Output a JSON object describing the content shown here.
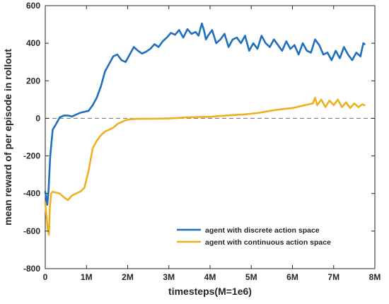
{
  "chart_data": {
    "type": "line",
    "title": "",
    "xlabel": "timesteps(M=1e6)",
    "ylabel": "mean reward of per episode in rollout",
    "xlim": [
      0,
      8
    ],
    "ylim": [
      -800,
      600
    ],
    "xticks": [
      0,
      1,
      2,
      3,
      4,
      5,
      6,
      7,
      8
    ],
    "xtick_labels": [
      "0",
      "1M",
      "2M",
      "3M",
      "4M",
      "5M",
      "6M",
      "7M",
      "8M"
    ],
    "yticks": [
      -800,
      -600,
      -400,
      -200,
      0,
      200,
      400,
      600
    ],
    "ytick_labels": [
      "-800",
      "-600",
      "-400",
      "-200",
      "0",
      "200",
      "400",
      "600"
    ],
    "grid": false,
    "legend_position": "bottom-right",
    "reference_line": {
      "y": 0,
      "style": "dashed",
      "color": "#7f7f7f"
    },
    "series": [
      {
        "name": "agent with discrete action space",
        "color": "#1f6fbf",
        "x": [
          0.0,
          0.05,
          0.08,
          0.12,
          0.18,
          0.25,
          0.35,
          0.45,
          0.55,
          0.65,
          0.75,
          0.85,
          0.95,
          1.05,
          1.15,
          1.25,
          1.35,
          1.45,
          1.55,
          1.65,
          1.75,
          1.85,
          1.95,
          2.05,
          2.15,
          2.25,
          2.35,
          2.45,
          2.55,
          2.65,
          2.75,
          2.85,
          2.95,
          3.05,
          3.15,
          3.25,
          3.35,
          3.45,
          3.55,
          3.65,
          3.72,
          3.8,
          3.85,
          3.9,
          3.95,
          4.05,
          4.15,
          4.25,
          4.35,
          4.45,
          4.55,
          4.65,
          4.75,
          4.85,
          4.95,
          5.05,
          5.15,
          5.25,
          5.35,
          5.45,
          5.55,
          5.65,
          5.75,
          5.85,
          5.95,
          6.05,
          6.15,
          6.25,
          6.35,
          6.45,
          6.55,
          6.65,
          6.75,
          6.85,
          6.95,
          7.05,
          7.15,
          7.25,
          7.35,
          7.45,
          7.55,
          7.65,
          7.72,
          7.75
        ],
        "values": [
          -390,
          -460,
          -380,
          -200,
          -60,
          -35,
          5,
          15,
          15,
          10,
          20,
          30,
          35,
          40,
          70,
          110,
          170,
          250,
          290,
          330,
          340,
          310,
          300,
          340,
          380,
          360,
          345,
          355,
          370,
          395,
          380,
          410,
          430,
          455,
          445,
          470,
          430,
          475,
          450,
          460,
          440,
          505,
          470,
          420,
          440,
          470,
          400,
          420,
          450,
          380,
          420,
          430,
          400,
          440,
          360,
          400,
          370,
          440,
          400,
          380,
          420,
          390,
          360,
          410,
          370,
          390,
          340,
          400,
          360,
          350,
          420,
          390,
          340,
          350,
          310,
          360,
          320,
          380,
          340,
          310,
          350,
          330,
          400,
          395
        ]
      },
      {
        "name": "agent with continuous action space",
        "color": "#edb120",
        "x": [
          0.0,
          0.03,
          0.06,
          0.09,
          0.11,
          0.14,
          0.18,
          0.25,
          0.35,
          0.45,
          0.55,
          0.65,
          0.75,
          0.85,
          0.95,
          1.05,
          1.15,
          1.25,
          1.35,
          1.45,
          1.55,
          1.65,
          1.75,
          1.85,
          1.95,
          2.05,
          2.2,
          2.4,
          2.6,
          2.8,
          3.0,
          3.2,
          3.4,
          3.6,
          3.8,
          4.0,
          4.2,
          4.4,
          4.6,
          4.8,
          5.0,
          5.2,
          5.4,
          5.6,
          5.8,
          6.0,
          6.1,
          6.2,
          6.3,
          6.4,
          6.5,
          6.55,
          6.6,
          6.7,
          6.8,
          6.9,
          7.0,
          7.1,
          7.2,
          7.3,
          7.4,
          7.5,
          7.6,
          7.7,
          7.75
        ],
        "values": [
          -450,
          -520,
          -590,
          -620,
          -480,
          -400,
          -390,
          -395,
          -400,
          -420,
          -435,
          -410,
          -400,
          -390,
          -370,
          -280,
          -160,
          -120,
          -90,
          -70,
          -60,
          -50,
          -30,
          -20,
          -10,
          -5,
          -3,
          -2,
          -2,
          -1,
          0,
          2,
          5,
          6,
          8,
          8,
          12,
          15,
          18,
          20,
          25,
          30,
          38,
          45,
          50,
          55,
          60,
          65,
          70,
          75,
          80,
          110,
          70,
          100,
          60,
          95,
          70,
          100,
          60,
          85,
          55,
          80,
          60,
          75,
          70
        ]
      }
    ]
  }
}
